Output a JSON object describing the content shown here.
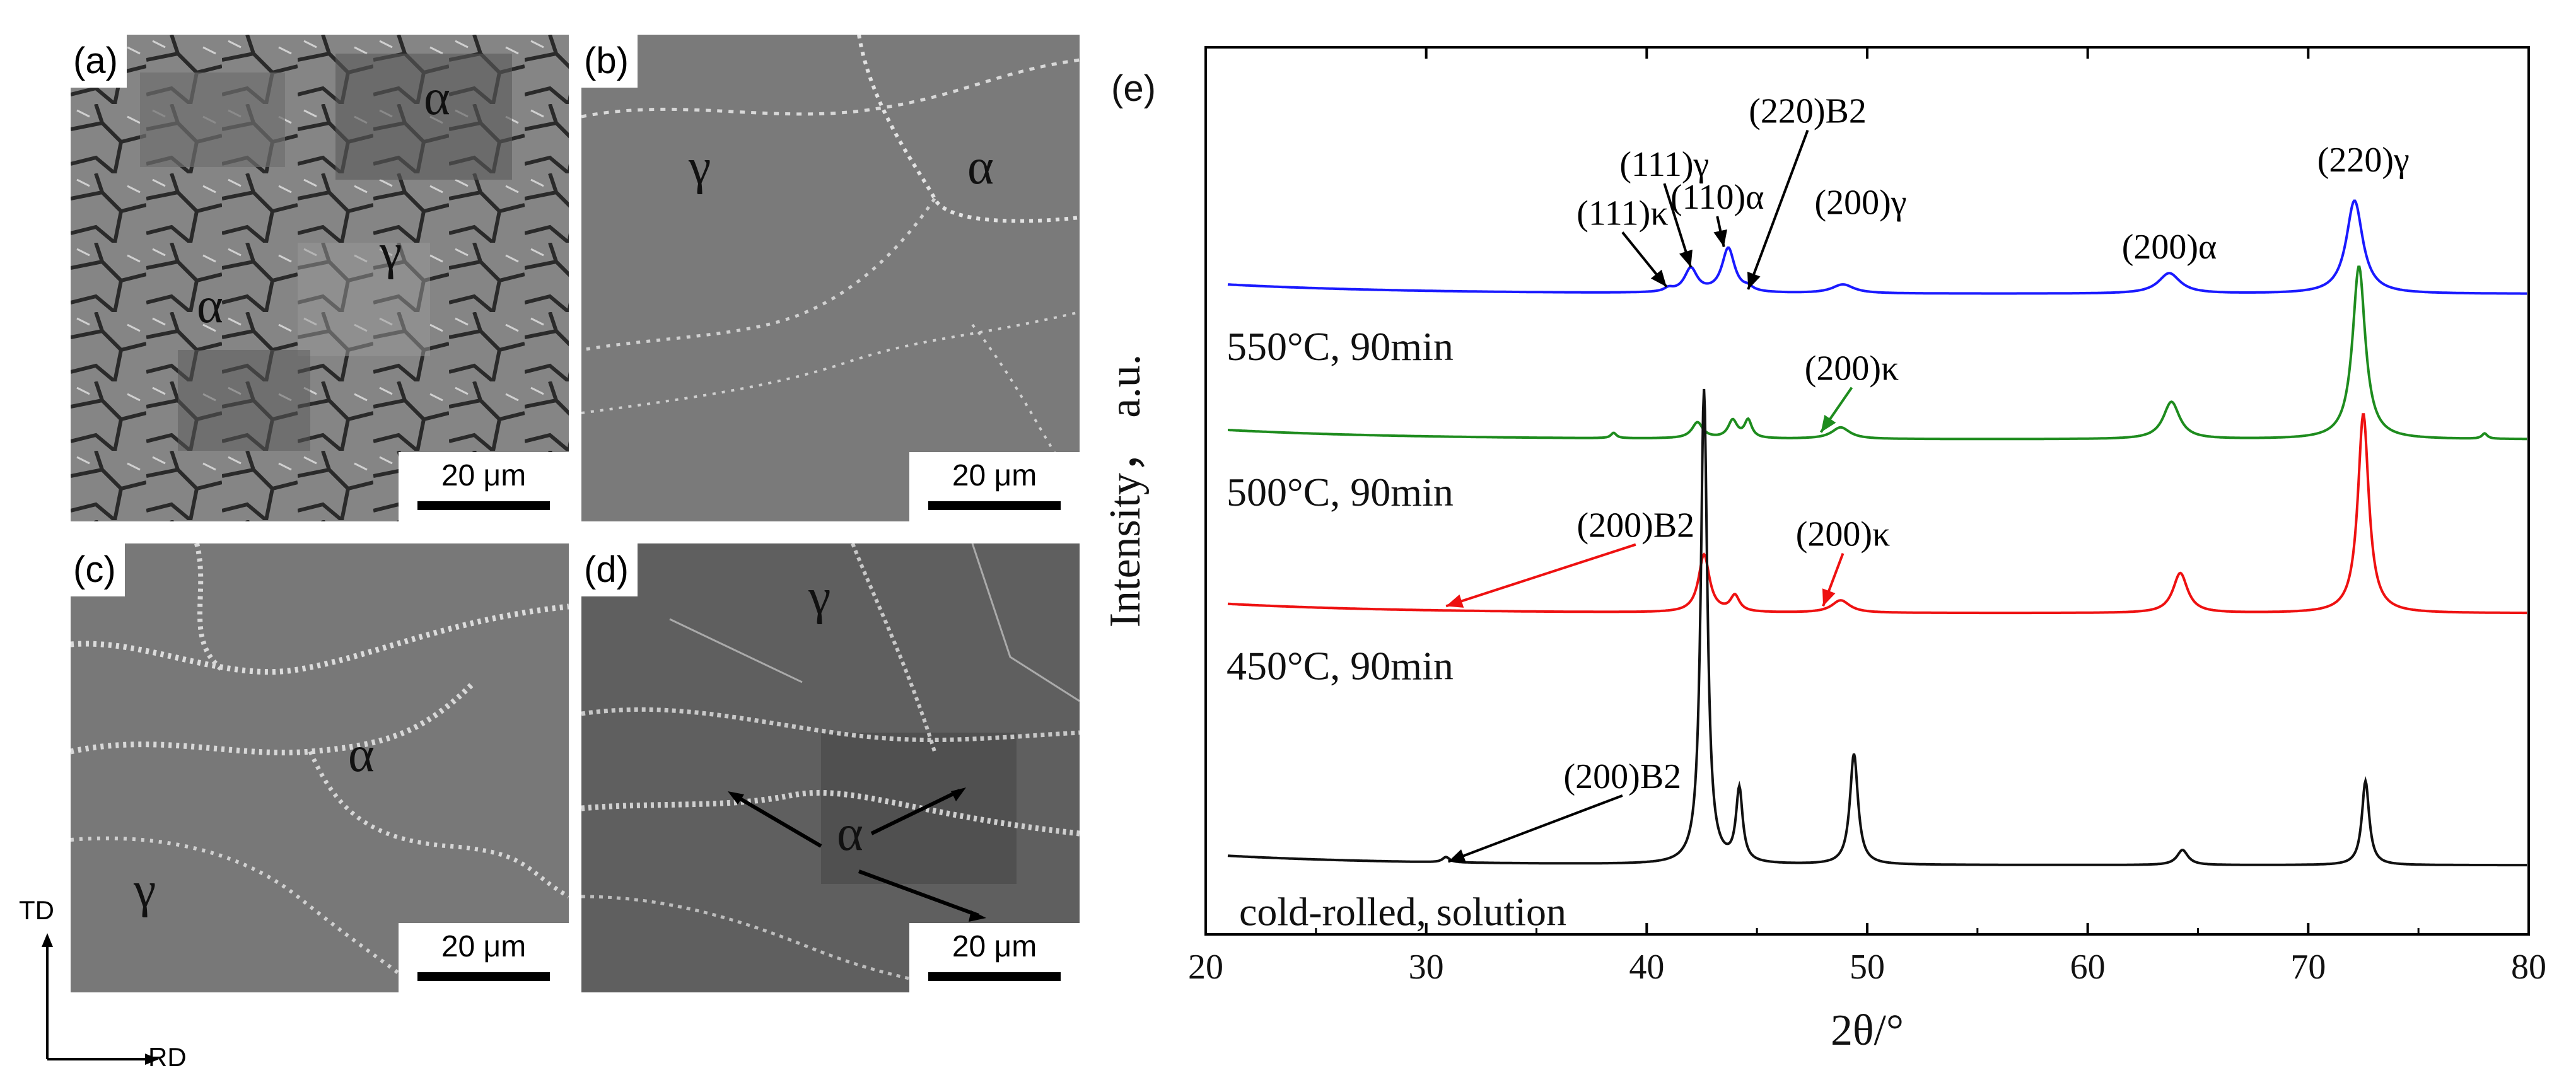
{
  "panels": {
    "a": {
      "label": "(a)",
      "phases": [
        "α",
        "γ",
        "α"
      ],
      "scale": "20 μm"
    },
    "b": {
      "label": "(b)",
      "phases": [
        "γ",
        "α"
      ],
      "scale": "20 μm"
    },
    "c": {
      "label": "(c)",
      "phases": [
        "α",
        "γ"
      ],
      "scale": "20 μm"
    },
    "d": {
      "label": "(d)",
      "phases": [
        "γ",
        "α"
      ],
      "scale": "20 μm"
    }
  },
  "axes_indicator": {
    "td": "TD",
    "rd": "RD"
  },
  "chart_data": {
    "type": "line",
    "panel_label": "(e)",
    "title": "",
    "xlabel": "2θ/°",
    "ylabel": "Intensity， a.u.",
    "xlim": [
      20,
      80
    ],
    "ylim": [
      0,
      1
    ],
    "x_ticks": [
      20,
      30,
      40,
      50,
      60,
      70,
      80
    ],
    "grid": false,
    "series": [
      {
        "name": "550°C, 90min",
        "color": "#1a1aff",
        "baseline": 0.722,
        "peaks": [
          {
            "x": 41.0,
            "h": 0.004,
            "w": 0.25
          },
          {
            "x": 42.0,
            "h": 0.027,
            "w": 0.35
          },
          {
            "x": 43.7,
            "h": 0.05,
            "w": 0.35
          },
          {
            "x": 44.6,
            "h": 0.004,
            "w": 0.25
          },
          {
            "x": 48.9,
            "h": 0.01,
            "w": 0.6
          },
          {
            "x": 63.7,
            "h": 0.023,
            "w": 0.6
          },
          {
            "x": 72.1,
            "h": 0.105,
            "w": 0.45
          }
        ]
      },
      {
        "name": "500°C, 90min",
        "color": "#1e8c1e",
        "baseline": 0.558,
        "peaks": [
          {
            "x": 38.5,
            "h": 0.006,
            "w": 0.15
          },
          {
            "x": 42.3,
            "h": 0.018,
            "w": 0.3
          },
          {
            "x": 43.9,
            "h": 0.02,
            "w": 0.25
          },
          {
            "x": 44.6,
            "h": 0.02,
            "w": 0.2
          },
          {
            "x": 48.8,
            "h": 0.013,
            "w": 0.5
          },
          {
            "x": 63.8,
            "h": 0.042,
            "w": 0.45
          },
          {
            "x": 72.3,
            "h": 0.195,
            "w": 0.35
          },
          {
            "x": 78.0,
            "h": 0.006,
            "w": 0.15
          }
        ]
      },
      {
        "name": "450°C, 90min",
        "color": "#ee1111",
        "baseline": 0.362,
        "peaks": [
          {
            "x": 42.6,
            "h": 0.065,
            "w": 0.3
          },
          {
            "x": 44.0,
            "h": 0.018,
            "w": 0.25
          },
          {
            "x": 48.8,
            "h": 0.014,
            "w": 0.5
          },
          {
            "x": 64.2,
            "h": 0.045,
            "w": 0.4
          },
          {
            "x": 72.5,
            "h": 0.225,
            "w": 0.3
          }
        ]
      },
      {
        "name": "cold-rolled, solution",
        "color": "#111111",
        "baseline": 0.078,
        "peaks": [
          {
            "x": 30.9,
            "h": 0.006,
            "w": 0.2
          },
          {
            "x": 42.6,
            "h": 0.535,
            "w": 0.18
          },
          {
            "x": 44.2,
            "h": 0.082,
            "w": 0.18
          },
          {
            "x": 49.4,
            "h": 0.125,
            "w": 0.22
          },
          {
            "x": 64.3,
            "h": 0.017,
            "w": 0.3
          },
          {
            "x": 72.6,
            "h": 0.095,
            "w": 0.2
          }
        ]
      }
    ],
    "annotations": [
      {
        "text": "(111)γ",
        "color": "#000000",
        "x": 40.8,
        "y": 0.855,
        "ax": 42.0,
        "ay": 0.752
      },
      {
        "text": "(111)κ",
        "color": "#000000",
        "x": 38.9,
        "y": 0.8,
        "ax": 40.9,
        "ay": 0.73
      },
      {
        "text": "(110)α",
        "color": "#000000",
        "x": 43.2,
        "y": 0.818,
        "ax": 43.5,
        "ay": 0.775
      },
      {
        "text": "(220)B2",
        "color": "#000000",
        "x": 47.3,
        "y": 0.915,
        "ax": 44.6,
        "ay": 0.727
      },
      {
        "text": "(200)γ",
        "color": "#000000",
        "x": 49.7,
        "y": 0.812,
        "ax": null,
        "ay": null
      },
      {
        "text": "(200)α",
        "color": "#000000",
        "x": 63.7,
        "y": 0.762,
        "ax": null,
        "ay": null
      },
      {
        "text": "(220)γ",
        "color": "#000000",
        "x": 72.5,
        "y": 0.86,
        "ax": null,
        "ay": null
      },
      {
        "text": "(200)κ",
        "color": "#000000",
        "x": 49.3,
        "y": 0.625,
        "ax": 47.9,
        "ay": 0.566
      },
      {
        "text": "(200)κ",
        "color": "#000000",
        "x": 48.9,
        "y": 0.438,
        "ax": 48.0,
        "ay": 0.37
      },
      {
        "text": "(200)B2",
        "color": "#000000",
        "x": 39.5,
        "y": 0.448,
        "ax": 30.9,
        "ay": 0.37
      },
      {
        "text": "(200)B2",
        "color": "#000000",
        "x": 38.9,
        "y": 0.165,
        "ax": 31.0,
        "ay": 0.082
      }
    ],
    "annotation_arrow_colors": [
      "#000000",
      "#000000",
      "#000000",
      "#000000",
      null,
      null,
      null,
      "#1e8c1e",
      "#ee1111",
      "#ee1111",
      "#000000"
    ]
  }
}
